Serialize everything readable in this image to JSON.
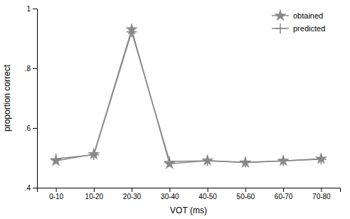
{
  "chart_data": {
    "type": "line",
    "xlabel": "VOT (ms)",
    "ylabel": "proportion correct",
    "categories": [
      "0-10",
      "10-20",
      "20-30",
      "30-40",
      "40-50",
      "50-60",
      "60-70",
      "70-80"
    ],
    "series": [
      {
        "name": "obtained",
        "color": "#888888",
        "marker": "star",
        "line_style": "solid",
        "values": [
          0.49,
          0.512,
          0.93,
          0.48,
          0.491,
          0.484,
          0.49,
          0.497
        ]
      },
      {
        "name": "predicted",
        "color": "#888888",
        "marker": "plus",
        "line_style": "solid",
        "values": [
          0.497,
          0.51,
          0.922,
          0.488,
          0.49,
          0.485,
          0.49,
          0.495
        ]
      }
    ],
    "ylim": [
      0.4,
      1.0
    ],
    "yticks": [
      {
        "value": 0.4,
        "label": ".4"
      },
      {
        "value": 0.6,
        "label": ".6"
      },
      {
        "value": 0.8,
        "label": ".8"
      },
      1
    ],
    "grid": false,
    "legend": "upper right"
  }
}
